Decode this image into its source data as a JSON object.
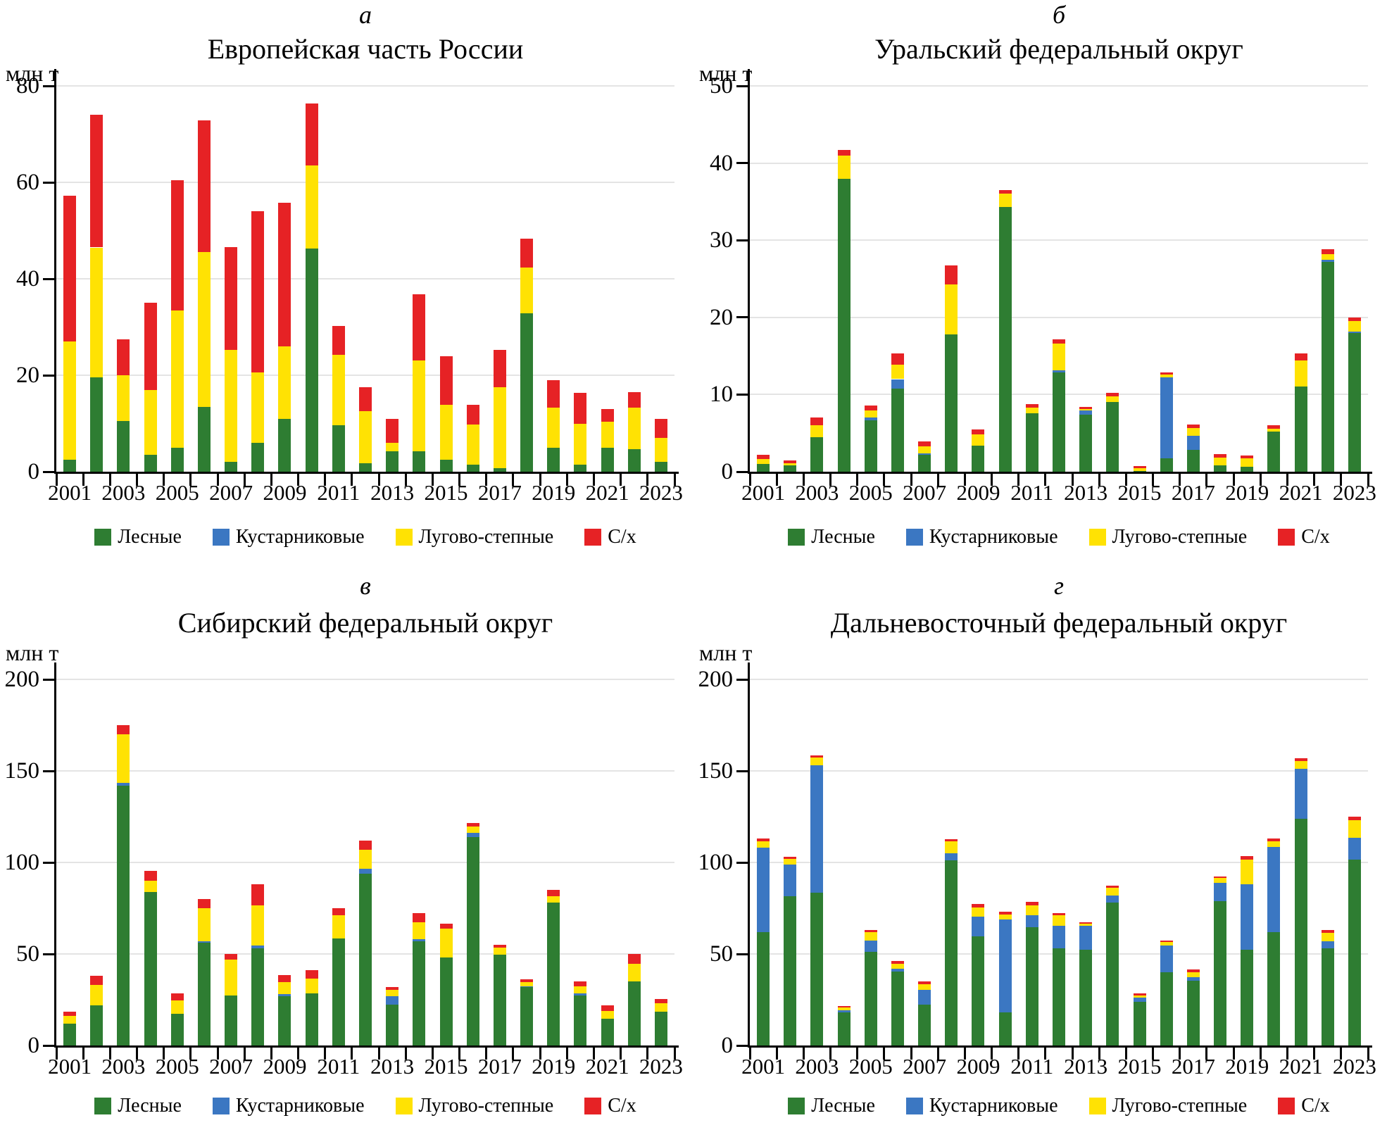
{
  "figure_unit": "млн т",
  "chart_data": [
    {
      "type": "bar",
      "stacked": true,
      "panel_letter": "а",
      "title": "Европейская часть России",
      "unit_label": "млн т",
      "ylim": [
        0,
        80
      ],
      "yticks": [
        0,
        20,
        40,
        60,
        80
      ],
      "grid": true,
      "legend_position": "bottom",
      "years": [
        2001,
        2002,
        2003,
        2004,
        2005,
        2006,
        2007,
        2008,
        2009,
        2010,
        2011,
        2012,
        2013,
        2014,
        2015,
        2016,
        2017,
        2018,
        2019,
        2020,
        2021,
        2022,
        2023
      ],
      "xtick_labels": [
        "2001",
        "2003",
        "2005",
        "2007",
        "2009",
        "2011",
        "2013",
        "2015",
        "2017",
        "2019",
        "2021",
        "2023"
      ],
      "series": [
        {
          "name": "Лесные",
          "color": "#2e7d32",
          "values": [
            2.5,
            19.5,
            10.5,
            3.5,
            5,
            13.5,
            2,
            6,
            11,
            46.3,
            9.7,
            1.8,
            4.3,
            4.3,
            2.5,
            1.5,
            0.8,
            32.8,
            5,
            1.5,
            5,
            4.7,
            2
          ]
        },
        {
          "name": "Кустарниковые",
          "color": "#3b77c2",
          "values": [
            0,
            0,
            0,
            0,
            0,
            0,
            0,
            0,
            0,
            0,
            0,
            0,
            0,
            0,
            0,
            0,
            0,
            0,
            0,
            0,
            0,
            0,
            0
          ]
        },
        {
          "name": "Лугово-степные",
          "color": "#ffe203",
          "values": [
            24.5,
            27,
            9.5,
            13.5,
            28.5,
            32,
            23.3,
            14.6,
            15,
            17.2,
            14.6,
            10.7,
            1.7,
            18.7,
            11.3,
            8.3,
            16.7,
            9.5,
            8.3,
            8.5,
            5.3,
            8.6,
            5
          ]
        },
        {
          "name": "С/х",
          "color": "#e62225",
          "values": [
            30.3,
            27.5,
            7.5,
            18,
            27,
            27.3,
            21.2,
            33.4,
            29.8,
            12.8,
            5.9,
            5,
            5,
            13.8,
            10.2,
            4,
            7.8,
            6,
            5.7,
            6.3,
            2.7,
            3.2,
            4
          ]
        }
      ]
    },
    {
      "type": "bar",
      "stacked": true,
      "panel_letter": "б",
      "title": "Уральский федеральный округ",
      "unit_label": "млн т",
      "ylim": [
        0,
        50
      ],
      "yticks": [
        0,
        10,
        20,
        30,
        40,
        50
      ],
      "grid": true,
      "legend_position": "bottom",
      "years": [
        2001,
        2002,
        2003,
        2004,
        2005,
        2006,
        2007,
        2008,
        2009,
        2010,
        2011,
        2012,
        2013,
        2014,
        2015,
        2016,
        2017,
        2018,
        2019,
        2020,
        2021,
        2022,
        2023
      ],
      "xtick_labels": [
        "2001",
        "2003",
        "2005",
        "2007",
        "2009",
        "2011",
        "2013",
        "2015",
        "2017",
        "2019",
        "2021",
        "2023"
      ],
      "series": [
        {
          "name": "Лесные",
          "color": "#2e7d32",
          "values": [
            1.0,
            0.8,
            4.5,
            38,
            6.7,
            10.8,
            2.2,
            17.8,
            3.4,
            34.3,
            7.6,
            12.9,
            7.4,
            9.0,
            0.1,
            1.7,
            2.8,
            0.8,
            0.6,
            5.2,
            11.0,
            27.2,
            18.0
          ]
        },
        {
          "name": "Кустарниковые",
          "color": "#3b77c2",
          "values": [
            0,
            0,
            0,
            0,
            0.3,
            1.2,
            0.2,
            0,
            0,
            0,
            0,
            0.2,
            0.5,
            0,
            0,
            10.5,
            1.9,
            0,
            0,
            0,
            0,
            0.3,
            0.2
          ]
        },
        {
          "name": "Лугово-степные",
          "color": "#ffe203",
          "values": [
            0.6,
            0.3,
            1.5,
            3.0,
            0.9,
            1.9,
            0.9,
            6.5,
            1.4,
            1.7,
            0.7,
            3.5,
            0.2,
            0.8,
            0.4,
            0.4,
            1.0,
            1.0,
            1.1,
            0.4,
            3.4,
            0.7,
            1.3
          ]
        },
        {
          "name": "С/х",
          "color": "#e62225",
          "values": [
            0.6,
            0.4,
            1.0,
            0.7,
            0.7,
            1.4,
            0.6,
            2.4,
            0.7,
            0.5,
            0.5,
            0.6,
            0.3,
            0.4,
            0.2,
            0.3,
            0.4,
            0.5,
            0.4,
            0.4,
            0.9,
            0.6,
            0.5
          ]
        }
      ]
    },
    {
      "type": "bar",
      "stacked": true,
      "panel_letter": "в",
      "title": "Сибирский федеральный округ",
      "unit_label": "млн т",
      "ylim": [
        0,
        200
      ],
      "yticks": [
        0,
        50,
        100,
        150,
        200
      ],
      "grid": true,
      "legend_position": "bottom",
      "years": [
        2001,
        2002,
        2003,
        2004,
        2005,
        2006,
        2007,
        2008,
        2009,
        2010,
        2011,
        2012,
        2013,
        2014,
        2015,
        2016,
        2017,
        2018,
        2019,
        2020,
        2021,
        2022,
        2023
      ],
      "xtick_labels": [
        "2001",
        "2003",
        "2005",
        "2007",
        "2009",
        "2011",
        "2013",
        "2015",
        "2017",
        "2019",
        "2021",
        "2023"
      ],
      "series": [
        {
          "name": "Лесные",
          "color": "#2e7d32",
          "values": [
            12,
            22,
            142,
            84,
            17.5,
            56,
            27.5,
            53,
            27,
            28.5,
            58.5,
            94,
            22.5,
            57,
            48,
            114,
            49.5,
            32,
            78,
            27.5,
            14.5,
            35,
            18.5
          ]
        },
        {
          "name": "Кустарниковые",
          "color": "#3b77c2",
          "values": [
            0,
            0,
            1.5,
            0,
            0,
            1,
            0,
            1.5,
            1,
            0,
            0,
            2.5,
            4.5,
            1,
            0,
            2,
            0,
            0.5,
            0,
            1,
            0,
            0,
            0
          ]
        },
        {
          "name": "Лугово-степные",
          "color": "#ffe203",
          "values": [
            4,
            11,
            26.5,
            6,
            7,
            18,
            19.5,
            22,
            6.5,
            8,
            12.5,
            10.5,
            3.5,
            9.5,
            16,
            3.5,
            4,
            2,
            3.5,
            4,
            4.5,
            9.5,
            4.5
          ]
        },
        {
          "name": "С/х",
          "color": "#e62225",
          "values": [
            2.5,
            5,
            5,
            5.5,
            4,
            5,
            3,
            11.5,
            4,
            4.5,
            4,
            5,
            1.5,
            5,
            2.5,
            2,
            1.5,
            1.5,
            3.5,
            2.5,
            3,
            5.5,
            2.5
          ]
        }
      ]
    },
    {
      "type": "bar",
      "stacked": true,
      "panel_letter": "г",
      "title": "Дальневосточный федеральный округ",
      "unit_label": "млн т",
      "ylim": [
        0,
        200
      ],
      "yticks": [
        0,
        50,
        100,
        150,
        200
      ],
      "grid": true,
      "legend_position": "bottom",
      "years": [
        2001,
        2002,
        2003,
        2004,
        2005,
        2006,
        2007,
        2008,
        2009,
        2010,
        2011,
        2012,
        2013,
        2014,
        2015,
        2016,
        2017,
        2018,
        2019,
        2020,
        2021,
        2022,
        2023
      ],
      "xtick_labels": [
        "2001",
        "2003",
        "2005",
        "2007",
        "2009",
        "2011",
        "2013",
        "2015",
        "2017",
        "2019",
        "2021",
        "2023"
      ],
      "series": [
        {
          "name": "Лесные",
          "color": "#2e7d32",
          "values": [
            62,
            81.5,
            83.5,
            18,
            51,
            40.5,
            22.5,
            101,
            59.5,
            18,
            64.5,
            53,
            52.5,
            78,
            24,
            40,
            35.5,
            79,
            52.5,
            62,
            124,
            53,
            101.5
          ]
        },
        {
          "name": "Кустарниковые",
          "color": "#3b77c2",
          "values": [
            46,
            17.5,
            69.5,
            1.2,
            6.5,
            1.5,
            8,
            4,
            11,
            51,
            6.5,
            12.5,
            13,
            4,
            2,
            14.5,
            2,
            10,
            35.5,
            46.5,
            27,
            4,
            12
          ]
        },
        {
          "name": "Лугово-степные",
          "color": "#ffe203",
          "values": [
            3.5,
            3,
            4.5,
            1.5,
            4.3,
            2.5,
            3,
            6.4,
            5,
            2.5,
            5.5,
            5.5,
            1,
            4,
            1.5,
            2,
            2.5,
            2.5,
            13.5,
            3,
            4.5,
            4.5,
            9.5
          ]
        },
        {
          "name": "С/х",
          "color": "#e62225",
          "values": [
            1.5,
            1,
            1,
            1,
            1.2,
            1.5,
            1.5,
            1.3,
            2,
            1.5,
            2,
            1.5,
            1,
            1.5,
            1,
            1,
            1.5,
            1,
            2,
            1.5,
            1.5,
            1.5,
            2
          ]
        }
      ]
    }
  ]
}
